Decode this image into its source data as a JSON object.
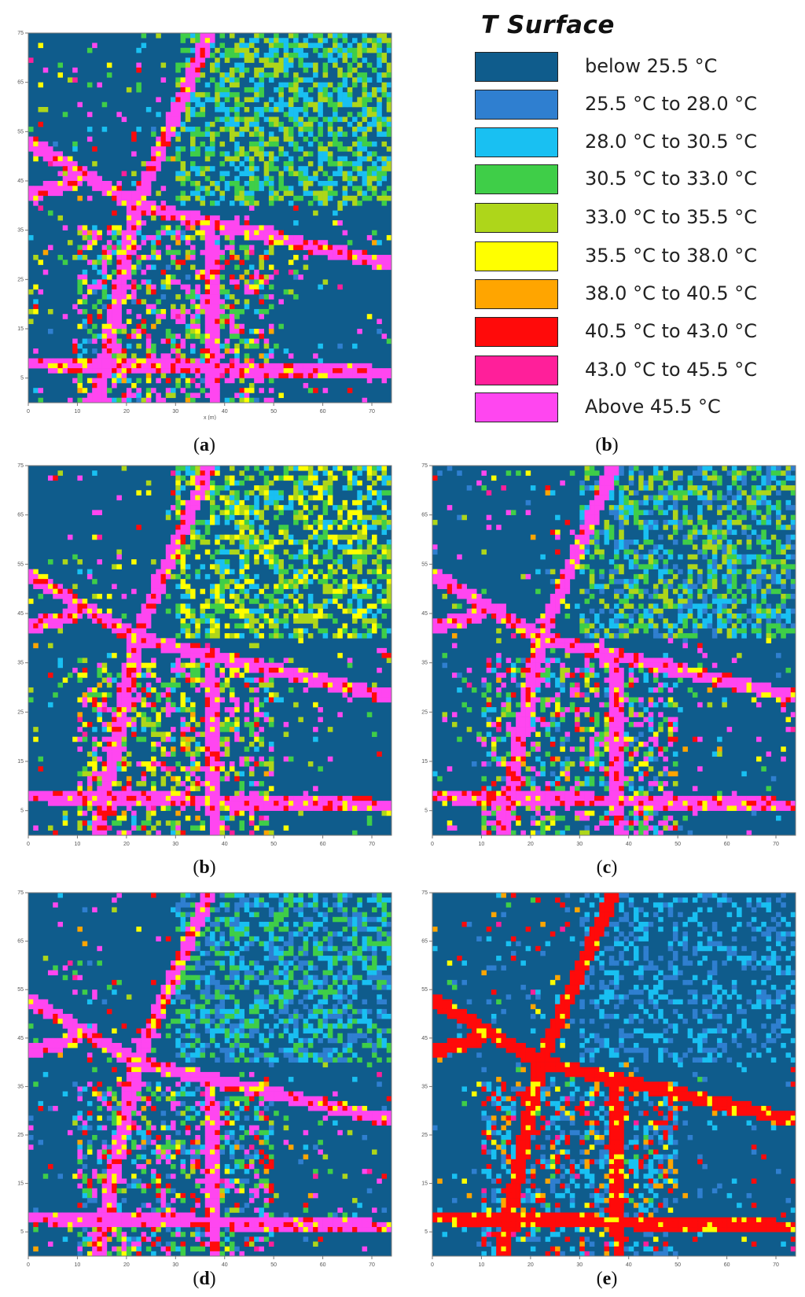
{
  "legend": {
    "title": "T Surface",
    "items": [
      {
        "label": "below 25.5 °C",
        "color": "#0f5c8c"
      },
      {
        "label": "25.5 °C to 28.0 °C",
        "color": "#2f7fd0"
      },
      {
        "label": "28.0 °C to 30.5 °C",
        "color": "#19c0f2"
      },
      {
        "label": "30.5 °C to 33.0 °C",
        "color": "#3fce48"
      },
      {
        "label": "33.0 °C to 35.5 °C",
        "color": "#aed61a"
      },
      {
        "label": "35.5 °C to 38.0 °C",
        "color": "#ffff00"
      },
      {
        "label": "38.0 °C to 40.5 °C",
        "color": "#ffa500"
      },
      {
        "label": "40.5 °C to 43.0 °C",
        "color": "#ff0a0a"
      },
      {
        "label": "43.0 °C to 45.5 °C",
        "color": "#ff1f9a"
      },
      {
        "label": "Above 45.5 °C",
        "color": "#ff46f0"
      }
    ]
  },
  "captions": {
    "a": "a",
    "b_legend": "b",
    "b": "b",
    "c": "c",
    "d": "d",
    "e": "e"
  },
  "chart_data": [
    {
      "type": "heatmap",
      "panel": "a",
      "title": "",
      "xlabel": "x (m)",
      "ylabel": "",
      "x_ticks": [
        0,
        10,
        20,
        30,
        40,
        50,
        60,
        70
      ],
      "y_ticks": [
        5,
        15,
        25,
        35,
        45,
        55,
        65,
        75
      ],
      "xlim": [
        0,
        74
      ],
      "ylim": [
        0,
        75
      ],
      "dominant_class": "below 25.5 °C",
      "class_order": [
        "below 25.5 °C",
        "25.5 °C to 28.0 °C",
        "28.0 °C to 30.5 °C",
        "30.5 °C to 33.0 °C",
        "33.0 °C to 35.5 °C",
        "35.5 °C to 38.0 °C",
        "38.0 °C to 40.5 °C",
        "40.5 °C to 43.0 °C",
        "43.0 °C to 45.5 °C",
        "Above 45.5 °C"
      ],
      "approx_fractions": [
        0.58,
        0.01,
        0.05,
        0.07,
        0.06,
        0.04,
        0.01,
        0.04,
        0.02,
        0.12
      ]
    },
    {
      "type": "heatmap",
      "panel": "b",
      "title": "",
      "xlabel": "",
      "ylabel": "",
      "x_ticks": [
        0,
        10,
        20,
        30,
        40,
        50,
        60,
        70
      ],
      "y_ticks": [
        5,
        15,
        25,
        35,
        45,
        55,
        65,
        75
      ],
      "xlim": [
        0,
        74
      ],
      "ylim": [
        0,
        75
      ],
      "dominant_class": "below 25.5 °C",
      "approx_fractions": [
        0.58,
        0.0,
        0.03,
        0.07,
        0.09,
        0.06,
        0.01,
        0.03,
        0.01,
        0.12
      ]
    },
    {
      "type": "heatmap",
      "panel": "c",
      "title": "",
      "xlabel": "",
      "ylabel": "",
      "x_ticks": [
        0,
        10,
        20,
        30,
        40,
        50,
        60,
        70
      ],
      "y_ticks": [
        5,
        15,
        25,
        35,
        45,
        55,
        65,
        75
      ],
      "xlim": [
        0,
        74
      ],
      "ylim": [
        0,
        75
      ],
      "dominant_class": "below 25.5 °C",
      "approx_fractions": [
        0.58,
        0.04,
        0.05,
        0.08,
        0.05,
        0.03,
        0.01,
        0.03,
        0.01,
        0.12
      ]
    },
    {
      "type": "heatmap",
      "panel": "d",
      "title": "",
      "xlabel": "",
      "ylabel": "",
      "x_ticks": [
        0,
        10,
        20,
        30,
        40,
        50,
        60,
        70
      ],
      "y_ticks": [
        5,
        15,
        25,
        35,
        45,
        55,
        65,
        75
      ],
      "xlim": [
        0,
        74
      ],
      "ylim": [
        0,
        75
      ],
      "dominant_class": "below 25.5 °C",
      "approx_fractions": [
        0.58,
        0.06,
        0.06,
        0.08,
        0.03,
        0.02,
        0.01,
        0.05,
        0.01,
        0.1
      ]
    },
    {
      "type": "heatmap",
      "panel": "e",
      "title": "",
      "xlabel": "",
      "ylabel": "",
      "x_ticks": [
        0,
        10,
        20,
        30,
        40,
        50,
        60,
        70
      ],
      "y_ticks": [
        5,
        15,
        25,
        35,
        45,
        55,
        65,
        75
      ],
      "xlim": [
        0,
        74
      ],
      "ylim": [
        0,
        75
      ],
      "dominant_class": "below 25.5 °C",
      "approx_fractions": [
        0.62,
        0.1,
        0.12,
        0.01,
        0.0,
        0.02,
        0.04,
        0.08,
        0.01,
        0.0
      ]
    }
  ]
}
